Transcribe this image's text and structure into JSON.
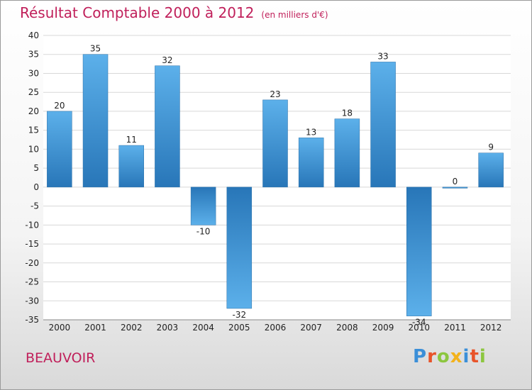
{
  "chart_data": {
    "type": "bar",
    "title": "Résultat Comptable 2000 à 2012",
    "subtitle": "(en milliers d'€)",
    "categories": [
      "2000",
      "2001",
      "2002",
      "2003",
      "2004",
      "2005",
      "2006",
      "2007",
      "2008",
      "2009",
      "2010",
      "2011",
      "2012"
    ],
    "values": [
      20,
      35,
      11,
      32,
      -10,
      -32,
      23,
      13,
      18,
      33,
      -34,
      0,
      9
    ],
    "ylim": [
      -35,
      40
    ],
    "yticks": [
      40,
      35,
      30,
      25,
      20,
      15,
      10,
      5,
      0,
      -5,
      -10,
      -15,
      -20,
      -25,
      -30,
      -35
    ],
    "grid": true,
    "xlabel": "",
    "ylabel": ""
  },
  "entity_name": "BEAUVOIR",
  "logo": {
    "letters": [
      "P",
      "r",
      "o",
      "x",
      "i",
      "t",
      "i"
    ],
    "colors": [
      "#3b8fd8",
      "#e8542a",
      "#8cc63f",
      "#f3b21b",
      "#3b8fd8",
      "#e8542a",
      "#8cc63f"
    ]
  },
  "colors": {
    "bar_top": "#5cb0ea",
    "bar_bottom": "#2876b8",
    "accent": "#c01f5a"
  }
}
